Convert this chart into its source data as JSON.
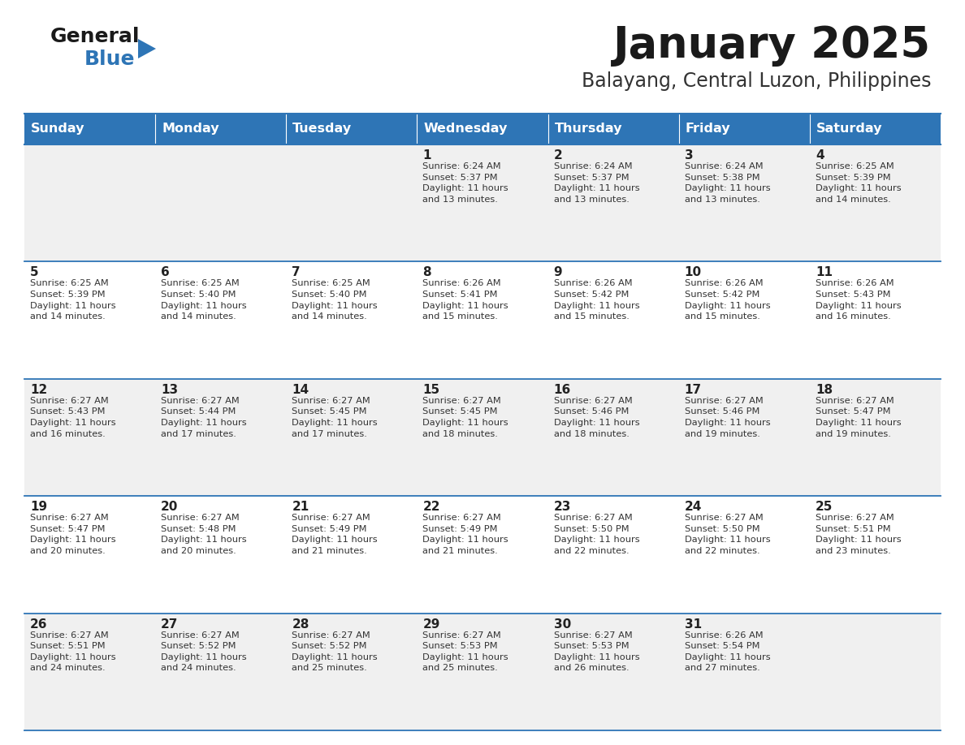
{
  "title": "January 2025",
  "subtitle": "Balayang, Central Luzon, Philippines",
  "header_bg": "#2E75B6",
  "header_text_color": "#FFFFFF",
  "days_of_week": [
    "Sunday",
    "Monday",
    "Tuesday",
    "Wednesday",
    "Thursday",
    "Friday",
    "Saturday"
  ],
  "row_bg_odd": "#F0F0F0",
  "row_bg_even": "#FFFFFF",
  "cell_border_color": "#2E75B6",
  "day_number_color": "#222222",
  "cell_text_color": "#333333",
  "logo_general_color": "#1a1a1a",
  "logo_blue_color": "#2E75B6",
  "logo_triangle_color": "#2E75B6",
  "calendar": [
    [
      {
        "day": "",
        "info": ""
      },
      {
        "day": "",
        "info": ""
      },
      {
        "day": "",
        "info": ""
      },
      {
        "day": "1",
        "info": "Sunrise: 6:24 AM\nSunset: 5:37 PM\nDaylight: 11 hours\nand 13 minutes."
      },
      {
        "day": "2",
        "info": "Sunrise: 6:24 AM\nSunset: 5:37 PM\nDaylight: 11 hours\nand 13 minutes."
      },
      {
        "day": "3",
        "info": "Sunrise: 6:24 AM\nSunset: 5:38 PM\nDaylight: 11 hours\nand 13 minutes."
      },
      {
        "day": "4",
        "info": "Sunrise: 6:25 AM\nSunset: 5:39 PM\nDaylight: 11 hours\nand 14 minutes."
      }
    ],
    [
      {
        "day": "5",
        "info": "Sunrise: 6:25 AM\nSunset: 5:39 PM\nDaylight: 11 hours\nand 14 minutes."
      },
      {
        "day": "6",
        "info": "Sunrise: 6:25 AM\nSunset: 5:40 PM\nDaylight: 11 hours\nand 14 minutes."
      },
      {
        "day": "7",
        "info": "Sunrise: 6:25 AM\nSunset: 5:40 PM\nDaylight: 11 hours\nand 14 minutes."
      },
      {
        "day": "8",
        "info": "Sunrise: 6:26 AM\nSunset: 5:41 PM\nDaylight: 11 hours\nand 15 minutes."
      },
      {
        "day": "9",
        "info": "Sunrise: 6:26 AM\nSunset: 5:42 PM\nDaylight: 11 hours\nand 15 minutes."
      },
      {
        "day": "10",
        "info": "Sunrise: 6:26 AM\nSunset: 5:42 PM\nDaylight: 11 hours\nand 15 minutes."
      },
      {
        "day": "11",
        "info": "Sunrise: 6:26 AM\nSunset: 5:43 PM\nDaylight: 11 hours\nand 16 minutes."
      }
    ],
    [
      {
        "day": "12",
        "info": "Sunrise: 6:27 AM\nSunset: 5:43 PM\nDaylight: 11 hours\nand 16 minutes."
      },
      {
        "day": "13",
        "info": "Sunrise: 6:27 AM\nSunset: 5:44 PM\nDaylight: 11 hours\nand 17 minutes."
      },
      {
        "day": "14",
        "info": "Sunrise: 6:27 AM\nSunset: 5:45 PM\nDaylight: 11 hours\nand 17 minutes."
      },
      {
        "day": "15",
        "info": "Sunrise: 6:27 AM\nSunset: 5:45 PM\nDaylight: 11 hours\nand 18 minutes."
      },
      {
        "day": "16",
        "info": "Sunrise: 6:27 AM\nSunset: 5:46 PM\nDaylight: 11 hours\nand 18 minutes."
      },
      {
        "day": "17",
        "info": "Sunrise: 6:27 AM\nSunset: 5:46 PM\nDaylight: 11 hours\nand 19 minutes."
      },
      {
        "day": "18",
        "info": "Sunrise: 6:27 AM\nSunset: 5:47 PM\nDaylight: 11 hours\nand 19 minutes."
      }
    ],
    [
      {
        "day": "19",
        "info": "Sunrise: 6:27 AM\nSunset: 5:47 PM\nDaylight: 11 hours\nand 20 minutes."
      },
      {
        "day": "20",
        "info": "Sunrise: 6:27 AM\nSunset: 5:48 PM\nDaylight: 11 hours\nand 20 minutes."
      },
      {
        "day": "21",
        "info": "Sunrise: 6:27 AM\nSunset: 5:49 PM\nDaylight: 11 hours\nand 21 minutes."
      },
      {
        "day": "22",
        "info": "Sunrise: 6:27 AM\nSunset: 5:49 PM\nDaylight: 11 hours\nand 21 minutes."
      },
      {
        "day": "23",
        "info": "Sunrise: 6:27 AM\nSunset: 5:50 PM\nDaylight: 11 hours\nand 22 minutes."
      },
      {
        "day": "24",
        "info": "Sunrise: 6:27 AM\nSunset: 5:50 PM\nDaylight: 11 hours\nand 22 minutes."
      },
      {
        "day": "25",
        "info": "Sunrise: 6:27 AM\nSunset: 5:51 PM\nDaylight: 11 hours\nand 23 minutes."
      }
    ],
    [
      {
        "day": "26",
        "info": "Sunrise: 6:27 AM\nSunset: 5:51 PM\nDaylight: 11 hours\nand 24 minutes."
      },
      {
        "day": "27",
        "info": "Sunrise: 6:27 AM\nSunset: 5:52 PM\nDaylight: 11 hours\nand 24 minutes."
      },
      {
        "day": "28",
        "info": "Sunrise: 6:27 AM\nSunset: 5:52 PM\nDaylight: 11 hours\nand 25 minutes."
      },
      {
        "day": "29",
        "info": "Sunrise: 6:27 AM\nSunset: 5:53 PM\nDaylight: 11 hours\nand 25 minutes."
      },
      {
        "day": "30",
        "info": "Sunrise: 6:27 AM\nSunset: 5:53 PM\nDaylight: 11 hours\nand 26 minutes."
      },
      {
        "day": "31",
        "info": "Sunrise: 6:26 AM\nSunset: 5:54 PM\nDaylight: 11 hours\nand 27 minutes."
      },
      {
        "day": "",
        "info": ""
      }
    ]
  ]
}
